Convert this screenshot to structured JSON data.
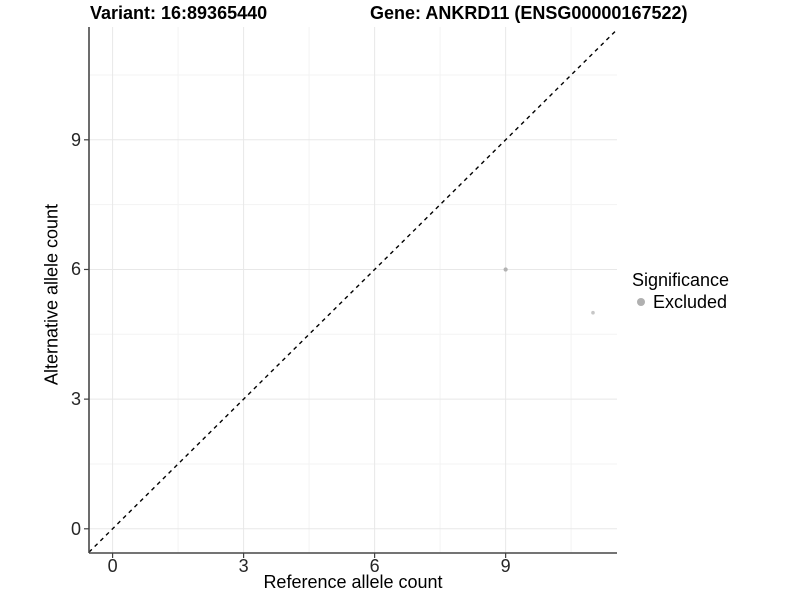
{
  "header": {
    "variant_title": "Variant: 16:89365440",
    "gene_title": "Gene: ANKRD11 (ENSG00000167522)"
  },
  "chart_data": {
    "type": "scatter",
    "title": "",
    "xlabel": "Reference allele count",
    "ylabel": "Alternative allele count",
    "xlim": [
      -0.54,
      11.55
    ],
    "ylim": [
      -0.56,
      11.61
    ],
    "x_ticks": [
      0,
      3,
      6,
      9
    ],
    "y_ticks": [
      0,
      3,
      6,
      9
    ],
    "x_minor_ticks": [
      1.5,
      4.5,
      7.5,
      10.5
    ],
    "y_minor_ticks": [
      1.5,
      4.5,
      7.5,
      10.5
    ],
    "grid": true,
    "identity_line": {
      "slope": 1,
      "intercept": 0,
      "linetype": "dashed",
      "color": "#000000"
    },
    "series": [
      {
        "name": "Excluded",
        "points": [
          {
            "x": 9,
            "y": 6,
            "r": 2.1,
            "color": "#b2b2b2"
          },
          {
            "x": 11,
            "y": 5,
            "r": 1.8,
            "color": "#c7c7c7"
          }
        ]
      }
    ],
    "legend": {
      "title": "Significance",
      "position": "right",
      "items": [
        {
          "label": "Excluded",
          "color": "#b0b0b0"
        }
      ]
    },
    "style": {
      "grid_major_color": "#e8e8e8",
      "grid_minor_color": "#f3f3f3",
      "axis_line_color": "#474747",
      "tick_mark_color": "#404040",
      "tick_label_color": "#262626",
      "background": "#ffffff"
    }
  }
}
